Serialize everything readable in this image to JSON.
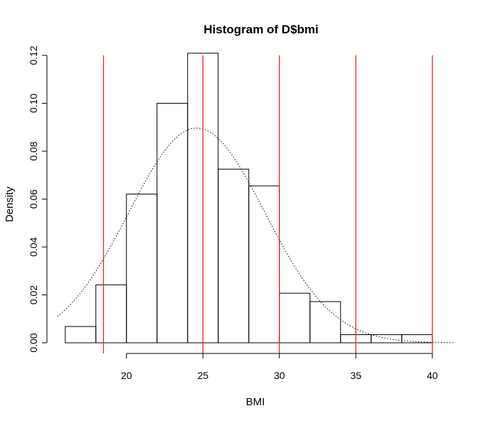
{
  "chart_data": {
    "type": "bar",
    "title": "Histogram of D$bmi",
    "xlabel": "BMI",
    "ylabel": "Density",
    "xlim": [
      15.5,
      41.5
    ],
    "ylim": [
      0,
      0.12
    ],
    "x_ticks": [
      "20",
      "25",
      "30",
      "35",
      "40"
    ],
    "y_ticks": [
      "0.00",
      "0.02",
      "0.04",
      "0.06",
      "0.08",
      "0.10",
      "0.12"
    ],
    "bins": [
      {
        "from": 16,
        "to": 18,
        "density": 0.0068
      },
      {
        "from": 18,
        "to": 20,
        "density": 0.0242
      },
      {
        "from": 20,
        "to": 22,
        "density": 0.0621
      },
      {
        "from": 22,
        "to": 24,
        "density": 0.1
      },
      {
        "from": 24,
        "to": 26,
        "density": 0.1209
      },
      {
        "from": 26,
        "to": 28,
        "density": 0.0725
      },
      {
        "from": 28,
        "to": 30,
        "density": 0.0655
      },
      {
        "from": 30,
        "to": 32,
        "density": 0.0207
      },
      {
        "from": 32,
        "to": 34,
        "density": 0.0172
      },
      {
        "from": 34,
        "to": 36,
        "density": 0.0034
      },
      {
        "from": 36,
        "to": 38,
        "density": 0.0034
      },
      {
        "from": 38,
        "to": 40,
        "density": 0.0034
      }
    ],
    "density_curve": {
      "mean": 24.6,
      "sd": 4.45,
      "style": "dotted",
      "color": "#000000"
    },
    "reference_lines": {
      "x": [
        18.5,
        25,
        30,
        35,
        40
      ],
      "color": "#ee2222"
    },
    "grid": false,
    "legend": "none"
  }
}
